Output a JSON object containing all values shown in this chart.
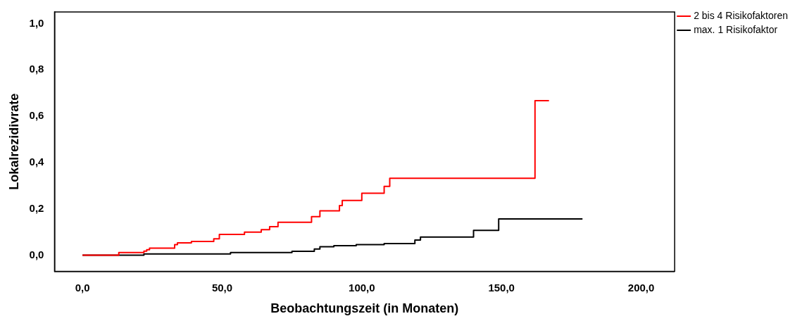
{
  "chart_data": {
    "type": "step",
    "xlabel": "Beobachtungszeit (in Monaten)",
    "ylabel": "Lokalrezidivrate",
    "xlim": [
      -10,
      212
    ],
    "ylim": [
      -0.07,
      1.05
    ],
    "xticks": [
      {
        "value": 0,
        "label": "0,0"
      },
      {
        "value": 50,
        "label": "50,0"
      },
      {
        "value": 100,
        "label": "100,0"
      },
      {
        "value": 150,
        "label": "150,0"
      },
      {
        "value": 200,
        "label": "200,0"
      }
    ],
    "yticks": [
      {
        "value": 0,
        "label": "0,0"
      },
      {
        "value": 0.2,
        "label": "0,2"
      },
      {
        "value": 0.4,
        "label": "0,4"
      },
      {
        "value": 0.6,
        "label": "0,6"
      },
      {
        "value": 0.8,
        "label": "0,8"
      },
      {
        "value": 1,
        "label": "1,0"
      }
    ],
    "grid": false,
    "legend": "top right",
    "line_style": "solid",
    "marker": "none",
    "series": [
      {
        "name": "2 bis 4 Risikofaktoren",
        "color": "#ff0000",
        "x": [
          0,
          13,
          22,
          23,
          24,
          33,
          34,
          39,
          47,
          49,
          58,
          64,
          67,
          70,
          82,
          85,
          92,
          93,
          100,
          108,
          110,
          162,
          167
        ],
        "values": [
          0,
          0.011,
          0.017,
          0.023,
          0.03,
          0.045,
          0.053,
          0.059,
          0.07,
          0.089,
          0.099,
          0.11,
          0.123,
          0.142,
          0.166,
          0.191,
          0.214,
          0.236,
          0.267,
          0.297,
          0.332,
          0.667,
          0.667
        ]
      },
      {
        "name": "max. 1 Risikofaktor",
        "color": "#000000",
        "x": [
          0,
          22,
          53,
          75,
          83,
          85,
          90,
          98,
          108,
          119,
          121,
          140,
          149,
          179
        ],
        "values": [
          0,
          0.005,
          0.011,
          0.016,
          0.026,
          0.036,
          0.041,
          0.045,
          0.05,
          0.065,
          0.078,
          0.107,
          0.156,
          0.156
        ]
      }
    ]
  }
}
